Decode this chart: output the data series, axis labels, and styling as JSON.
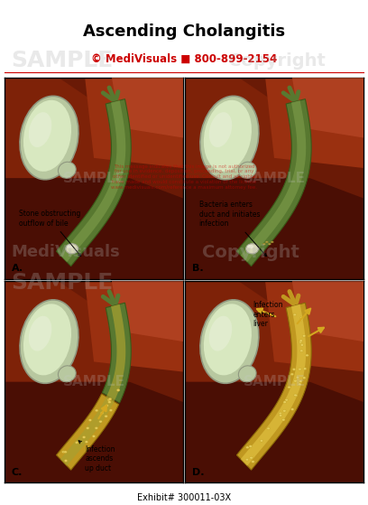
{
  "title": "Ascending Cholangitis",
  "subtitle": "© MediVisuals ■ 800-899-2154",
  "exhibit": "Exhibit# 300011-03X",
  "title_fontsize": 13,
  "subtitle_fontsize": 8.5,
  "exhibit_fontsize": 7,
  "bg_color": "#ffffff",
  "panel_border_color": "#000000",
  "liver_dark": "#5a1200",
  "liver_mid": "#7a2008",
  "liver_light": "#9a3010",
  "liver_highlight": "#b84020",
  "gb_outer": "#b8c8a0",
  "gb_inner": "#d8e8c0",
  "gb_highlight": "#e8f0d8",
  "duct_green_dark": "#3a5818",
  "duct_green_mid": "#587830",
  "duct_green_light": "#7a9848",
  "duct_yellow_dark": "#8a6808",
  "duct_yellow_mid": "#c09820",
  "duct_yellow_light": "#e0c040",
  "duct_spotted": "#d4b840",
  "stone_color": "#d8d8b8",
  "stone_edge": "#a8a898",
  "arrow_yellow": "#d4a820",
  "text_color": "#000000",
  "label_fontsize": 8,
  "ann_fontsize": 5.5,
  "watermark_gray": "#b0b0b0",
  "sample_color": "#c8c8c8",
  "red_text": "#cc0000",
  "panel_labels": [
    "A.",
    "B.",
    "C.",
    "D."
  ],
  "ann_texts": [
    "Stone obstructing\noutflow of bile",
    "Bacteria enters\nduct and initiates\ninfection",
    "Infection\nascends\nup duct",
    "Infection\nenters\nliver"
  ]
}
